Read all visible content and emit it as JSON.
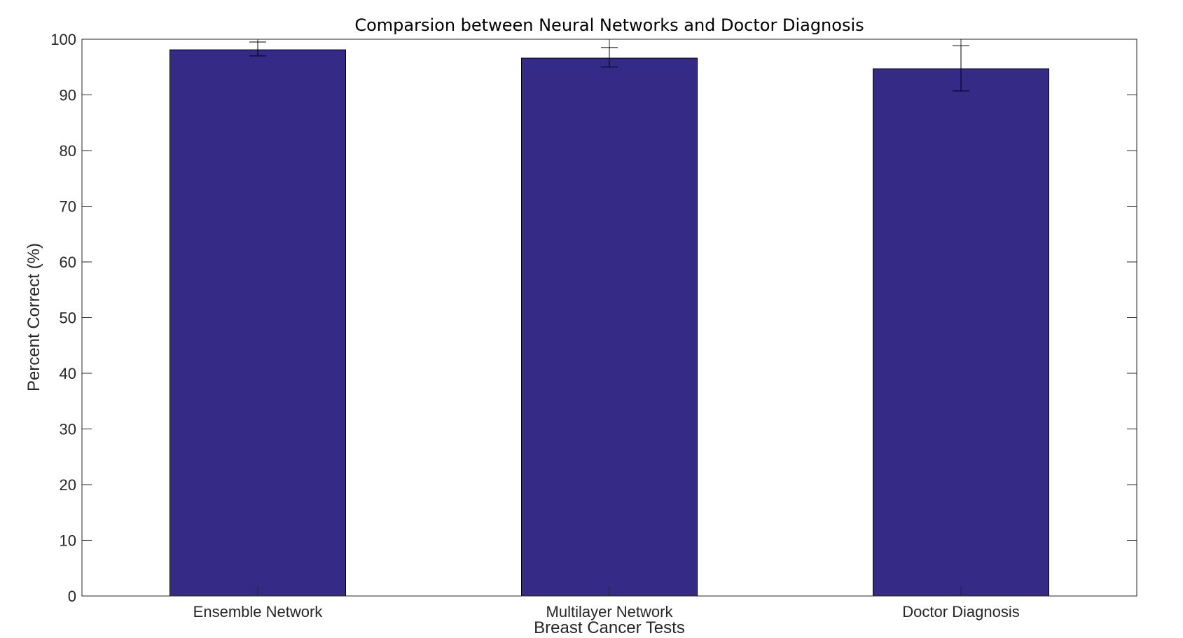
{
  "chart_data": {
    "type": "bar",
    "title": "Comparsion between Neural Networks and Doctor Diagnosis",
    "xlabel": "Breast Cancer Tests",
    "ylabel": "Percent Correct (%)",
    "categories": [
      "Ensemble Network",
      "Multilayer Network",
      "Doctor Diagnosis"
    ],
    "values": [
      98.1,
      96.6,
      94.7
    ],
    "error_bars": [
      {
        "low": 97.0,
        "high": 99.5
      },
      {
        "low": 95.0,
        "high": 98.5
      },
      {
        "low": 90.7,
        "high": 98.8
      }
    ],
    "ylim": [
      0,
      100
    ],
    "yticks": [
      0,
      10,
      20,
      30,
      40,
      50,
      60,
      70,
      80,
      90,
      100
    ],
    "grid": false,
    "bar_color": "#352a86"
  }
}
